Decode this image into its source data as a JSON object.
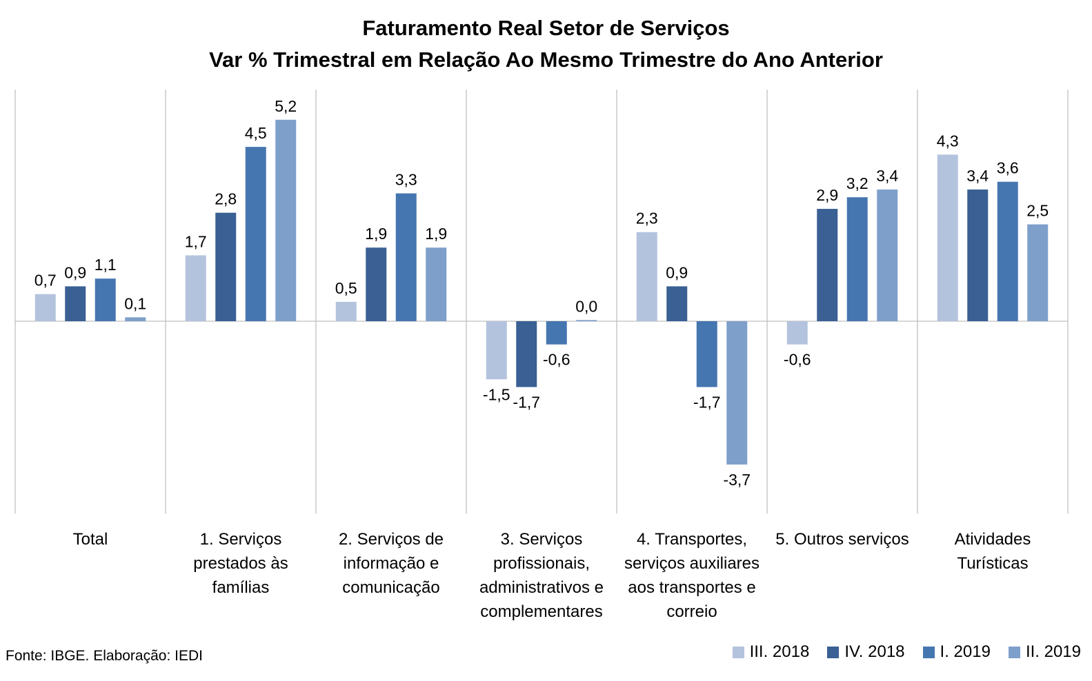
{
  "chart_data": {
    "type": "bar",
    "title": "Faturamento Real Setor de Serviços",
    "subtitle": "Var % Trimestral em Relação Ao Mesmo Trimestre do Ano Anterior",
    "categories": [
      "Total",
      "1. Serviços prestados às famílias",
      "2. Serviços de informação e comunicação",
      "3. Serviços profissionais, administrativos e complementares",
      "4. Transportes, serviços auxiliares aos transportes e correio",
      "5. Outros serviços",
      "Atividades Turísticas"
    ],
    "category_lines": [
      [
        "Total"
      ],
      [
        "1. Serviços",
        "prestados às",
        "famílias"
      ],
      [
        "2. Serviços de",
        "informação e",
        "comunicação"
      ],
      [
        "3. Serviços",
        "profissionais,",
        "administrativos e",
        "complementares"
      ],
      [
        "4. Transportes,",
        "serviços auxiliares",
        "aos transportes e",
        "correio"
      ],
      [
        "5. Outros serviços"
      ],
      [
        "Atividades",
        "Turísticas"
      ]
    ],
    "series": [
      {
        "name": "III. 2018",
        "color": "#b4c3dd",
        "values": [
          0.7,
          1.7,
          0.5,
          -1.5,
          2.3,
          -0.6,
          4.3
        ],
        "labels": [
          "0,7",
          "1,7",
          "0,5",
          "-1,5",
          "2,3",
          "-0,6",
          "4,3"
        ]
      },
      {
        "name": "IV. 2018",
        "color": "#3a6094",
        "values": [
          0.9,
          2.8,
          1.9,
          -1.7,
          0.9,
          2.9,
          3.4
        ],
        "labels": [
          "0,9",
          "2,8",
          "1,9",
          "-1,7",
          "0,9",
          "2,9",
          "3,4"
        ]
      },
      {
        "name": "I. 2019",
        "color": "#4676b0",
        "values": [
          1.1,
          4.5,
          3.3,
          -0.6,
          -1.7,
          3.2,
          3.6
        ],
        "labels": [
          "1,1",
          "4,5",
          "3,3",
          "-0,6",
          "-1,7",
          "3,2",
          "3,6"
        ]
      },
      {
        "name": "II. 2019",
        "color": "#7f9fcb",
        "values": [
          0.1,
          5.2,
          1.9,
          0.03,
          -3.7,
          3.4,
          2.5
        ],
        "labels": [
          "0,1",
          "5,2",
          "1,9",
          "0,0",
          "-3,7",
          "3,4",
          "2,5"
        ]
      }
    ],
    "ylim": [
      -5,
      6
    ],
    "grid": false,
    "legend_position": "bottom-right"
  },
  "source_note": "Fonte: IBGE. Elaboração: IEDI"
}
